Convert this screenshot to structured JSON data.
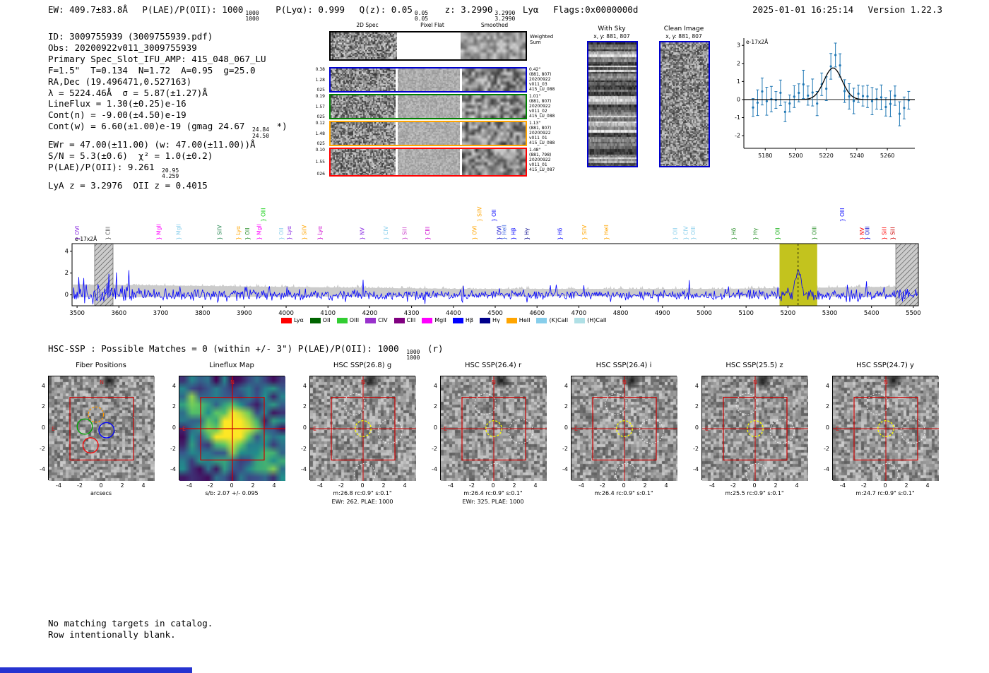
{
  "colors": {
    "spectrum_line": "#0000ff",
    "noise_band": "#c8c8c8",
    "highlight_band": "#c3c31e",
    "fit_marker": "#1f77b4",
    "panel_border_blue": "#0000cd",
    "crosshair_red": "#cc0000",
    "aperture_yellow": "#ffff00"
  },
  "header": {
    "ew": "EW: 409.7±83.8Å",
    "plae": "P(LAE)/P(OII): 1000",
    "plae_hi": "1000",
    "plae_lo": "1000",
    "plya": "P(Lyα): 0.999",
    "qz": "Q(z): 0.05",
    "qz_hi": "0.05",
    "qz_lo": "0.05",
    "z": "z: 3.2990",
    "z_hi": "3.2990",
    "z_lo": "3.2990",
    "line_id": "Lyα",
    "flags": "Flags:0x0000000d",
    "datetime": "2025-01-01 16:25:14",
    "version": "Version 1.22.3"
  },
  "info_lines": [
    {
      "text": "ID: 3009755939 (3009755939.pdf)"
    },
    {
      "text": "Obs: 20200922v011_3009755939"
    },
    {
      "text": "Primary Spec_Slot_IFU_AMP: 415_048_067_LU"
    },
    {
      "text": "F=1.5\"  T=0.134  N=1.72  A=0.95  g=25.0"
    },
    {
      "text": "RA,Dec (19.496471,0.527163)"
    },
    {
      "text": "λ = 5224.46Å  σ = 5.87(±1.27)Å"
    },
    {
      "text": "LineFlux = 1.30(±0.25)e-16"
    },
    {
      "text": "Cont(n) = -9.00(±4.50)e-19"
    },
    {
      "pre": "Cont(w) = 6.60(±1.00)e-19 (gmag 24.67 ",
      "hi": "24.84",
      "lo": "24.50",
      "post": " *)"
    },
    {
      "text": "EWr = 47.00(±11.00) (w: 47.00(±11.00))Å"
    },
    {
      "text": "S/N = 5.3(±0.6)  χ² = 1.0(±0.2)"
    },
    {
      "pre": "P(LAE)/P(OII): 9.261 ",
      "hi": "20.95",
      "lo": "4.259"
    },
    {
      "text": "LyA z = 3.2976  OII z = 0.4015"
    }
  ],
  "spec2d": {
    "col_headers": [
      "2D Spec",
      "Pixel Flat",
      "Smoothed"
    ],
    "weighted_sum": [
      "Weighted",
      "Sum"
    ],
    "rows": [
      {
        "color": "#0000cd",
        "left": [
          "0.38",
          "1.28",
          "025"
        ],
        "right": [
          "0.42\"",
          "(881, 807)",
          "20200922",
          "v011_03",
          "415_LU_088"
        ]
      },
      {
        "color": "#008000",
        "left": [
          "0.19",
          "1.57",
          "025"
        ],
        "right": [
          "1.01\"",
          "(881, 807)",
          "20200922",
          "v011_02",
          "415_LU_088"
        ]
      },
      {
        "color": "#ffa500",
        "left": [
          "0.12",
          "1.48",
          "025"
        ],
        "right": [
          "1.13\"",
          "(881, 807)",
          "20200922",
          "v011_01",
          "415_LU_088"
        ]
      },
      {
        "color": "#ff0000",
        "left": [
          "0.10",
          "1.55",
          "026"
        ],
        "right": [
          "1.48\"",
          "(881, 798)",
          "20200922",
          "v011_01",
          "415_LU_087"
        ]
      }
    ]
  },
  "sky_panel": {
    "title": "With Sky",
    "xy": "x, y: 881, 807"
  },
  "clean_panel": {
    "title": "Clean Image",
    "xy": "x, y: 881, 807"
  },
  "hsc_line": {
    "pre": "HSC-SSP : Possible Matches = 0 (within +/- 3\")  P(LAE)/P(OII): 1000 ",
    "hi": "1000",
    "lo": "1000",
    "post": " (r)"
  },
  "footer": {
    "line1": "No matching targets in catalog.",
    "line2": "Row intentionally blank."
  },
  "chart_data": [
    {
      "name": "line_fit_plot",
      "type": "scatter",
      "ylabel": "e-17x2Å",
      "xlim": [
        5166,
        5278
      ],
      "ylim": [
        -2.7,
        3.4
      ],
      "x_ticks": [
        5180,
        5200,
        5220,
        5240,
        5260
      ],
      "y_ticks": [
        3,
        2,
        1,
        0,
        -1,
        -2
      ],
      "fit_gaussian": {
        "center": 5224.46,
        "sigma": 5.87,
        "peak": 1.75
      },
      "marker_color": "#1f77b4",
      "fit_color": "#000000",
      "grid": false
    },
    {
      "name": "full_spectrum",
      "type": "line",
      "ylabel": "e-17x2Å",
      "xlim": [
        3488,
        5512
      ],
      "ylim": [
        -1.0,
        4.7
      ],
      "x_ticks": [
        3500,
        3600,
        3700,
        3800,
        3900,
        4000,
        4100,
        4200,
        4300,
        4400,
        4500,
        4600,
        4700,
        4800,
        4900,
        5000,
        5100,
        5200,
        5300,
        5400,
        5500
      ],
      "y_ticks": [
        0,
        2,
        4
      ],
      "detection_wavelength": 5224.46,
      "line_sigma": 5.87,
      "line_peak": 2.35,
      "highlight_region": [
        5180,
        5270
      ],
      "masked_regions": [
        [
          3542,
          3586
        ],
        [
          5458,
          5512
        ]
      ],
      "emission_markers": [
        {
          "label": "OVI",
          "wl": 3505,
          "color": "#8a2be2"
        },
        {
          "label": "CIII",
          "wl": 3578,
          "color": "#555555"
        },
        {
          "label": "MgII",
          "wl": 3700,
          "color": "#ff00ff"
        },
        {
          "label": "MgII",
          "wl": 3747,
          "color": "#87ceeb"
        },
        {
          "label": "SiIV",
          "wl": 3845,
          "color": "#2e8b57"
        },
        {
          "label": "Lyα",
          "wl": 3890,
          "color": "#ffa500"
        },
        {
          "label": "OII",
          "wl": 3912,
          "color": "#228b22"
        },
        {
          "label": "MgII",
          "wl": 3940,
          "color": "#ff00ff"
        },
        {
          "label": "OIII",
          "wl": 3950,
          "color": "#00cc00",
          "tall": true
        },
        {
          "label": "OII",
          "wl": 3993,
          "color": "#87ceeb"
        },
        {
          "label": "Lyα",
          "wl": 4012,
          "color": "#8a2be2"
        },
        {
          "label": "SiIV",
          "wl": 4048,
          "color": "#ffa500"
        },
        {
          "label": "Lyα",
          "wl": 4085,
          "color": "#cc00cc"
        },
        {
          "label": "NV",
          "wl": 4187,
          "color": "#8a2be2"
        },
        {
          "label": "CIV",
          "wl": 4243,
          "color": "#87ceeb"
        },
        {
          "label": "SiII",
          "wl": 4288,
          "color": "#cc44cc"
        },
        {
          "label": "CIII",
          "wl": 4343,
          "color": "#cc00cc"
        },
        {
          "label": "OVI",
          "wl": 4455,
          "color": "#ffa500"
        },
        {
          "label": "SiIV",
          "wl": 4467,
          "color": "#ffa500",
          "tall": true
        },
        {
          "label": "OII",
          "wl": 4502,
          "color": "#0000ff",
          "tall": true
        },
        {
          "label": "OVI",
          "wl": 4514,
          "color": "#0000cd"
        },
        {
          "label": "HeII",
          "wl": 4526,
          "color": "#4169e1"
        },
        {
          "label": "Hβ",
          "wl": 4548,
          "color": "#0000ff"
        },
        {
          "label": "Hγ",
          "wl": 4580,
          "color": "#00008b"
        },
        {
          "label": "Hδ",
          "wl": 4660,
          "color": "#0000ff"
        },
        {
          "label": "SiIV",
          "wl": 4718,
          "color": "#ffa500"
        },
        {
          "label": "HeII",
          "wl": 4770,
          "color": "#ffa500"
        },
        {
          "label": "OII",
          "wl": 4935,
          "color": "#87ceeb"
        },
        {
          "label": "CIV",
          "wl": 4960,
          "color": "#87ceeb"
        },
        {
          "label": "OIII",
          "wl": 4978,
          "color": "#87ceeb"
        },
        {
          "label": "Hδ",
          "wl": 5075,
          "color": "#228b22"
        },
        {
          "label": "Hγ",
          "wl": 5127,
          "color": "#228b22"
        },
        {
          "label": "OII",
          "wl": 5180,
          "color": "#00aa00"
        },
        {
          "label": "OIII",
          "wl": 5268,
          "color": "#228b22"
        },
        {
          "label": "OIII",
          "wl": 5335,
          "color": "#0000ff",
          "tall": true
        },
        {
          "label": "NV",
          "wl": 5382,
          "color": "#ff0000"
        },
        {
          "label": "OIII",
          "wl": 5395,
          "color": "#0000cd"
        },
        {
          "label": "SiII",
          "wl": 5435,
          "color": "#ff0000"
        },
        {
          "label": "SiII",
          "wl": 5455,
          "color": "#cc0000"
        }
      ],
      "legend": [
        {
          "label": "Lyα",
          "color": "#ff0000"
        },
        {
          "label": "OII",
          "color": "#006400"
        },
        {
          "label": "OIII",
          "color": "#32cd32"
        },
        {
          "label": "CIV",
          "color": "#9932cc"
        },
        {
          "label": "CIII",
          "color": "#800080"
        },
        {
          "label": "MgII",
          "color": "#ff00ff"
        },
        {
          "label": "Hβ",
          "color": "#0000ff"
        },
        {
          "label": "Hγ",
          "color": "#00008b"
        },
        {
          "label": "HeII",
          "color": "#ffa500"
        },
        {
          "label": "(K)CaII",
          "color": "#87ceeb"
        },
        {
          "label": "(H)CaII",
          "color": "#b0e0e6"
        }
      ]
    },
    {
      "name": "cutout_row",
      "type": "image_grid",
      "axis_ticks": [
        -4,
        -2,
        0,
        2,
        4
      ],
      "box_halfwidth_arcsec": 3,
      "aperture_radius_arcsec": 0.75,
      "compass": {
        "north": "N",
        "east": "E"
      },
      "panels": [
        {
          "title": "Fiber Positions",
          "xlabel": "arcsecs",
          "style": "fiber"
        },
        {
          "title": "Lineflux Map",
          "caption1": "s/b: 2.07 +/- 0.095",
          "style": "lineflux"
        },
        {
          "title": "HSC SSP(26.8) g",
          "caption1": "m:26.8 rc:0.9\" s:0.1\"",
          "caption2": "EWr: 262. PLAE: 1000",
          "style": "hsc"
        },
        {
          "title": "HSC SSP(26.4) r",
          "caption1": "m:26.4 rc:0.9\" s:0.1\"",
          "caption2": "EWr: 325. PLAE: 1000",
          "style": "hsc"
        },
        {
          "title": "HSC SSP(26.4) i",
          "caption1": "m:26.4 rc:0.9\" s:0.1\"",
          "style": "hsc"
        },
        {
          "title": "HSC SSP(25.5) z",
          "caption1": "m:25.5 rc:0.9\" s:0.1\"",
          "style": "hsc"
        },
        {
          "title": "HSC SSP(24.7) y",
          "caption1": "m:24.7 rc:0.9\" s:0.1\"",
          "style": "hsc"
        }
      ]
    }
  ]
}
